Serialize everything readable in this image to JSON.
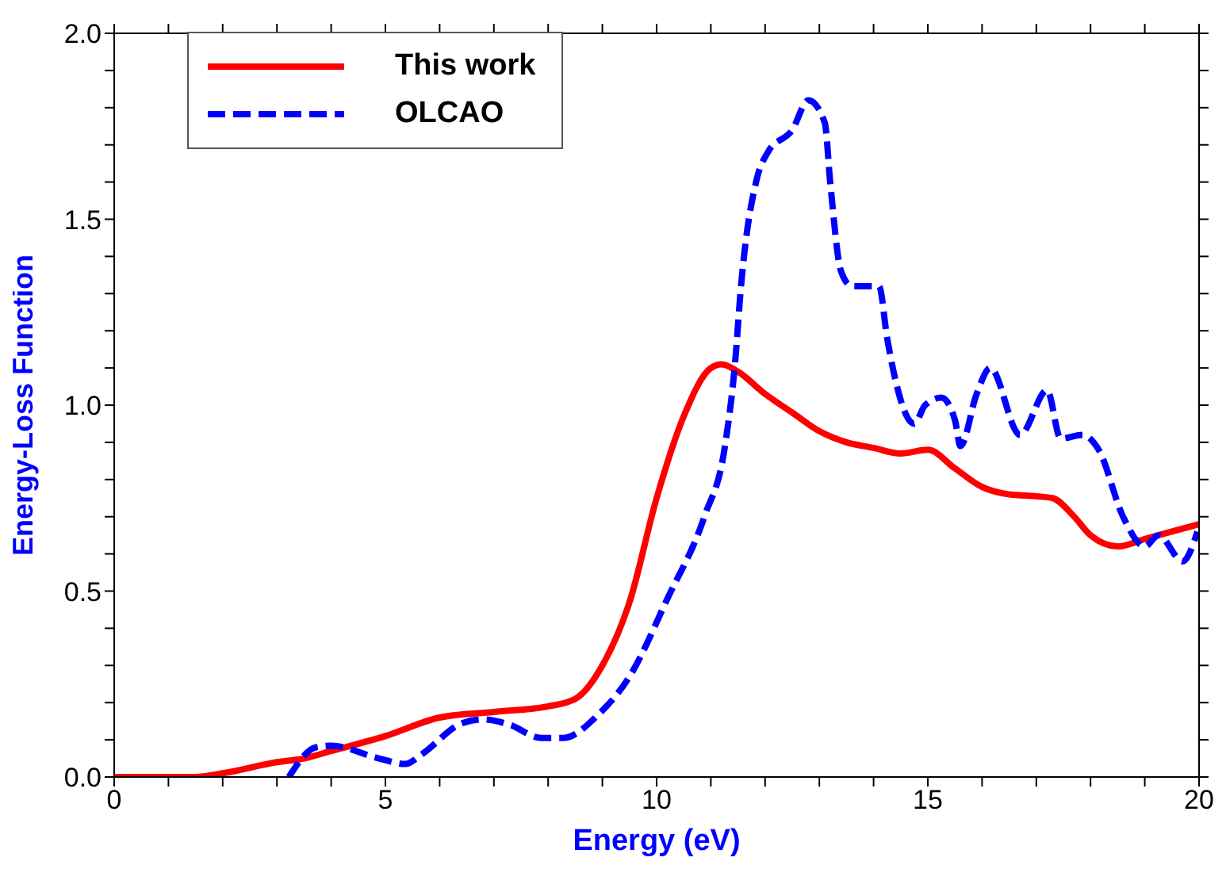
{
  "chart_data": {
    "type": "line",
    "xlabel": "Energy (eV)",
    "ylabel": "Energy-Loss Function",
    "xlim": [
      0,
      20
    ],
    "ylim": [
      0,
      2.0
    ],
    "xticks": [
      {
        "value": 0,
        "label": "0"
      },
      {
        "value": 1,
        "label": null
      },
      {
        "value": 2,
        "label": null
      },
      {
        "value": 3,
        "label": null
      },
      {
        "value": 4,
        "label": null
      },
      {
        "value": 5,
        "label": "5"
      },
      {
        "value": 6,
        "label": null
      },
      {
        "value": 7,
        "label": null
      },
      {
        "value": 8,
        "label": null
      },
      {
        "value": 9,
        "label": null
      },
      {
        "value": 10,
        "label": "10"
      },
      {
        "value": 11,
        "label": null
      },
      {
        "value": 12,
        "label": null
      },
      {
        "value": 13,
        "label": null
      },
      {
        "value": 14,
        "label": null
      },
      {
        "value": 15,
        "label": "15"
      },
      {
        "value": 16,
        "label": null
      },
      {
        "value": 17,
        "label": null
      },
      {
        "value": 18,
        "label": null
      },
      {
        "value": 19,
        "label": null
      },
      {
        "value": 20,
        "label": "20"
      }
    ],
    "yticks": [
      {
        "value": 0,
        "label": "0.0"
      },
      {
        "value": 0.1,
        "label": null
      },
      {
        "value": 0.2,
        "label": null
      },
      {
        "value": 0.3,
        "label": null
      },
      {
        "value": 0.4,
        "label": null
      },
      {
        "value": 0.5,
        "label": "0.5"
      },
      {
        "value": 0.6,
        "label": null
      },
      {
        "value": 0.7,
        "label": null
      },
      {
        "value": 0.8,
        "label": null
      },
      {
        "value": 0.9,
        "label": null
      },
      {
        "value": 1.0,
        "label": "1.0"
      },
      {
        "value": 1.1,
        "label": null
      },
      {
        "value": 1.2,
        "label": null
      },
      {
        "value": 1.3,
        "label": null
      },
      {
        "value": 1.4,
        "label": null
      },
      {
        "value": 1.5,
        "label": "1.5"
      },
      {
        "value": 1.6,
        "label": null
      },
      {
        "value": 1.7,
        "label": null
      },
      {
        "value": 1.8,
        "label": null
      },
      {
        "value": 1.9,
        "label": null
      },
      {
        "value": 2.0,
        "label": "2.0"
      }
    ],
    "legend": "top left",
    "marker": "none",
    "series": [
      {
        "name": "This work",
        "color": "#ff0000",
        "line_style": "solid",
        "x": [
          0,
          1.5,
          2,
          3,
          3.5,
          4,
          5,
          6,
          7,
          8,
          8.5,
          9,
          9.5,
          10,
          10.5,
          11,
          11.2,
          11.5,
          12,
          12.5,
          13,
          13.5,
          14,
          14.5,
          15,
          15.5,
          16,
          16.5,
          17,
          17.3,
          17.7,
          18,
          18.5,
          19,
          19.5,
          20
        ],
        "values": [
          0,
          0,
          0.01,
          0.04,
          0.05,
          0.07,
          0.11,
          0.16,
          0.175,
          0.19,
          0.21,
          0.3,
          0.47,
          0.75,
          0.97,
          1.1,
          1.11,
          1.09,
          1.03,
          0.98,
          0.93,
          0.9,
          0.885,
          0.87,
          0.88,
          0.83,
          0.78,
          0.76,
          0.755,
          0.75,
          0.7,
          0.65,
          0.62,
          0.64,
          0.66,
          0.68
        ]
      },
      {
        "name": "OLCAO",
        "color": "#0000ff",
        "line_style": "dashed",
        "x": [
          3.22,
          3.72,
          4.0,
          4.88,
          5.37,
          5.66,
          6.42,
          6.82,
          7.3,
          7.87,
          8.27,
          8.94,
          9.5,
          10.2,
          10.88,
          11.26,
          11.45,
          11.55,
          11.85,
          12.05,
          12.5,
          12.8,
          13.1,
          13.2,
          13.4,
          13.6,
          14.1,
          14.25,
          14.75,
          14.95,
          15.25,
          15.5,
          15.6,
          15.9,
          16.15,
          16.7,
          17.2,
          17.45,
          17.85,
          18.15,
          18.6,
          19.0,
          19.25,
          19.7,
          19.97
        ],
        "values": [
          0,
          0.08,
          0.084,
          0.05,
          0.035,
          0.06,
          0.145,
          0.155,
          0.14,
          0.105,
          0.105,
          0.17,
          0.27,
          0.48,
          0.7,
          0.89,
          1.12,
          1.31,
          1.61,
          1.68,
          1.74,
          1.82,
          1.76,
          1.6,
          1.36,
          1.32,
          1.32,
          1.18,
          0.95,
          1.0,
          1.02,
          0.96,
          0.89,
          1.03,
          1.1,
          0.92,
          1.04,
          0.91,
          0.92,
          0.88,
          0.7,
          0.62,
          0.65,
          0.58,
          0.66
        ]
      }
    ]
  }
}
